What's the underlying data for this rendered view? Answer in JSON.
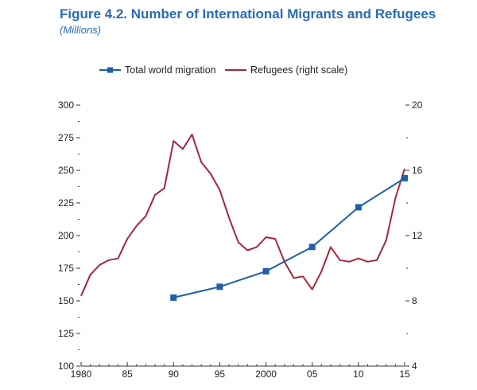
{
  "figure": {
    "title": "Figure 4.2.  Number of International Migrants and Refugees",
    "subtitle": "(Millions)"
  },
  "colors": {
    "title": "#2a6bb3",
    "migration": "#1f5fa6",
    "refugees": "#a2283e",
    "axis": "#333333"
  },
  "chart_data": {
    "type": "line",
    "title": "Number of International Migrants and Refugees",
    "unit": "Millions",
    "legend_position": "top",
    "grid": false,
    "x_ticks": [
      1980,
      1985,
      1990,
      1995,
      2000,
      2005,
      2010,
      2015
    ],
    "x_tick_labels": [
      "1980",
      "85",
      "90",
      "95",
      "2000",
      "05",
      "10",
      "15"
    ],
    "xlim": [
      1980,
      2015
    ],
    "y_left": {
      "lim": [
        100,
        300
      ],
      "ticks": [
        100,
        125,
        150,
        175,
        200,
        225,
        250,
        275,
        300
      ],
      "tick_labels": [
        "100",
        "125",
        "150",
        "175",
        "200",
        "225",
        "250",
        "275",
        "300"
      ]
    },
    "y_right": {
      "lim": [
        4,
        20
      ],
      "ticks": [
        4,
        8,
        12,
        16,
        20
      ],
      "tick_labels": [
        "4",
        "8",
        "12",
        "16",
        "20"
      ]
    },
    "series": [
      {
        "name": "Total world migration",
        "axis": "left",
        "marker": "square",
        "x": [
          1990,
          1995,
          2000,
          2005,
          2010,
          2015
        ],
        "values": [
          152.5,
          160.8,
          172.7,
          191.3,
          221.7,
          244.0
        ]
      },
      {
        "name": "Refugees (right scale)",
        "axis": "right",
        "marker": "none",
        "x": [
          1980,
          1981,
          1982,
          1983,
          1984,
          1985,
          1986,
          1987,
          1988,
          1989,
          1990,
          1991,
          1992,
          1993,
          1994,
          1995,
          1996,
          1997,
          1998,
          1999,
          2000,
          2001,
          2002,
          2003,
          2004,
          2005,
          2006,
          2007,
          2008,
          2009,
          2010,
          2011,
          2012,
          2013,
          2014,
          2015
        ],
        "values": [
          8.3,
          9.6,
          10.2,
          10.5,
          10.6,
          11.8,
          12.6,
          13.2,
          14.5,
          14.9,
          17.8,
          17.3,
          18.2,
          16.5,
          15.8,
          14.8,
          13.1,
          11.6,
          11.1,
          11.3,
          11.9,
          11.8,
          10.4,
          9.4,
          9.5,
          8.7,
          9.8,
          11.3,
          10.5,
          10.4,
          10.6,
          10.4,
          10.5,
          11.7,
          14.3,
          16.1
        ]
      }
    ]
  }
}
